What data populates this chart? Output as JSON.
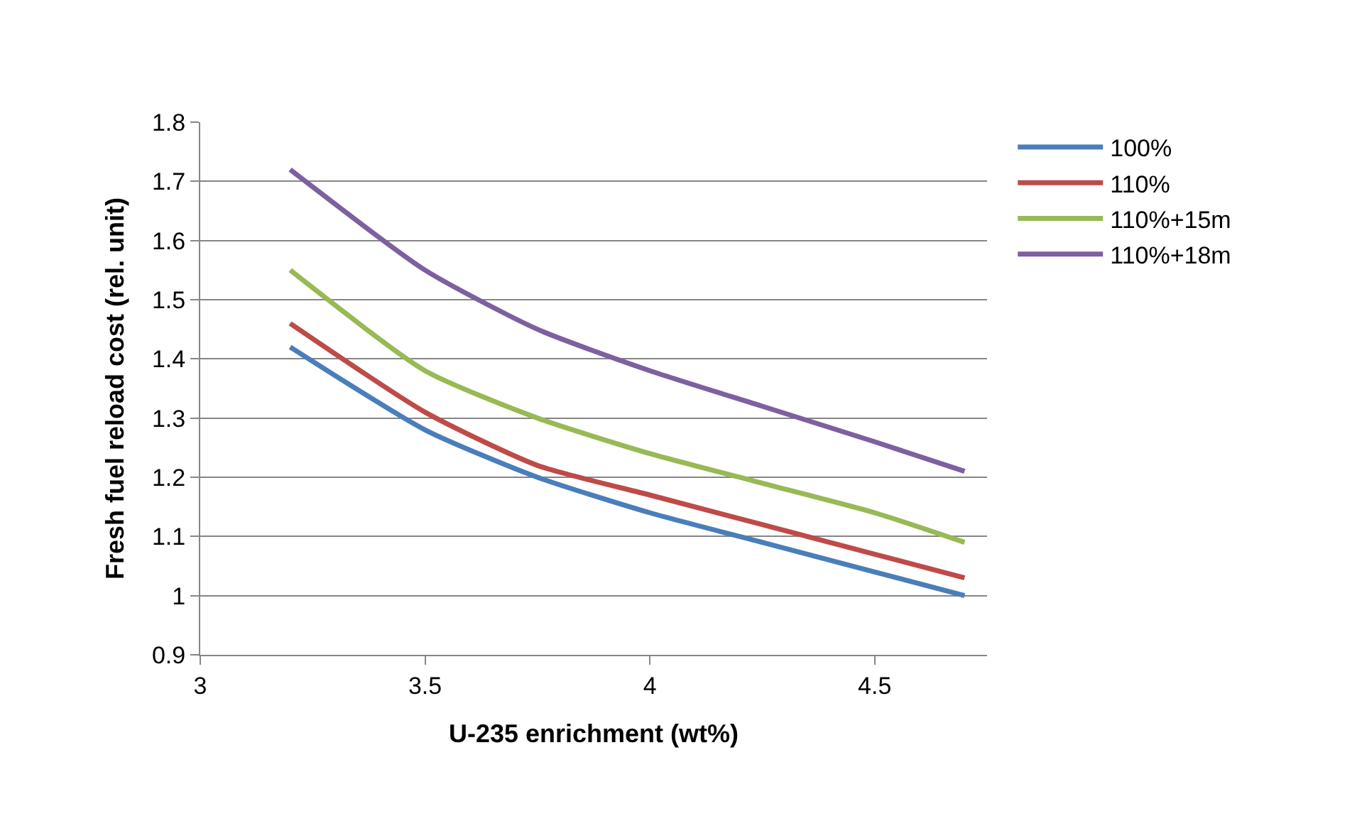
{
  "chart_data": {
    "type": "line",
    "xlabel": "U-235 enrichment (wt%)",
    "ylabel": "Fresh fuel reload cost (rel. unit)",
    "x": [
      3.2,
      3.5,
      3.75,
      4,
      4.25,
      4.5,
      4.7
    ],
    "series": [
      {
        "name": "100%",
        "color": "#4a7ebb",
        "values": [
          1.42,
          1.28,
          1.2,
          1.14,
          1.09,
          1.04,
          1.0
        ]
      },
      {
        "name": "110%",
        "color": "#be4b48",
        "values": [
          1.46,
          1.31,
          1.22,
          1.17,
          1.12,
          1.07,
          1.03
        ]
      },
      {
        "name": "110%+15m",
        "color": "#98b954",
        "values": [
          1.55,
          1.38,
          1.3,
          1.24,
          1.19,
          1.14,
          1.09
        ]
      },
      {
        "name": "110%+18m",
        "color": "#7d60a0",
        "values": [
          1.72,
          1.55,
          1.45,
          1.38,
          1.32,
          1.26,
          1.21
        ]
      }
    ],
    "xlim": [
      3,
      4.75
    ],
    "xticks": [
      3,
      3.5,
      4,
      4.5
    ],
    "ylim": [
      0.9,
      1.8
    ],
    "yticks": [
      0.9,
      1,
      1.1,
      1.2,
      1.3,
      1.4,
      1.5,
      1.6,
      1.7,
      1.8
    ],
    "grid": "y",
    "legend": "right",
    "marker": "none",
    "line_style": "solid"
  }
}
